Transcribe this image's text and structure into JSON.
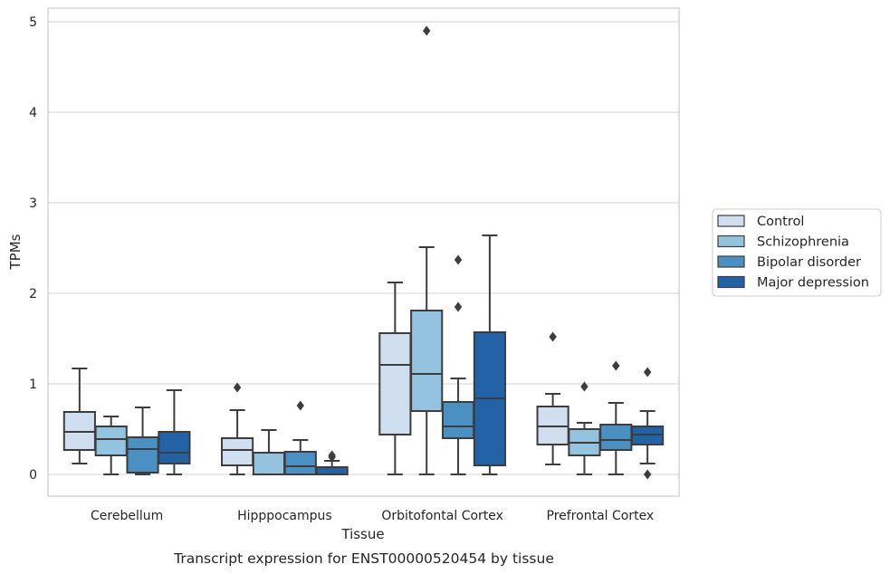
{
  "chart_data": {
    "type": "box",
    "xlabel": "Tissue",
    "ylabel": "TPMs",
    "caption": "Transcript expression for ENST00000520454 by tissue",
    "categories": [
      "Cerebellum",
      "Hipppocampus",
      "Orbitofontal Cortex",
      "Prefrontal Cortex"
    ],
    "ylim": [
      -0.23,
      5.15
    ],
    "yticks": [
      0,
      1,
      2,
      3,
      4,
      5
    ],
    "grid": "horizontal",
    "legend_placement": "right",
    "series": [
      {
        "name": "Control",
        "color": "#cfdff0",
        "boxes": [
          {
            "whislo": 0.12,
            "q1": 0.27,
            "med": 0.47,
            "q3": 0.69,
            "whishi": 1.17,
            "fliers": []
          },
          {
            "whislo": 0.0,
            "q1": 0.1,
            "med": 0.27,
            "q3": 0.4,
            "whishi": 0.71,
            "fliers": [
              0.96
            ]
          },
          {
            "whislo": 0.0,
            "q1": 0.44,
            "med": 1.21,
            "q3": 1.56,
            "whishi": 2.12,
            "fliers": []
          },
          {
            "whislo": 0.11,
            "q1": 0.33,
            "med": 0.53,
            "q3": 0.75,
            "whishi": 0.89,
            "fliers": [
              1.52
            ]
          }
        ]
      },
      {
        "name": "Schizophrenia",
        "color": "#93c3df",
        "boxes": [
          {
            "whislo": 0.0,
            "q1": 0.21,
            "med": 0.39,
            "q3": 0.53,
            "whishi": 0.64,
            "fliers": []
          },
          {
            "whislo": 0.0,
            "q1": 0.0,
            "med": 0.0,
            "q3": 0.24,
            "whishi": 0.49,
            "fliers": []
          },
          {
            "whislo": 0.0,
            "q1": 0.7,
            "med": 1.11,
            "q3": 1.81,
            "whishi": 2.51,
            "fliers": [
              4.9
            ]
          },
          {
            "whislo": 0.0,
            "q1": 0.21,
            "med": 0.35,
            "q3": 0.5,
            "whishi": 0.57,
            "fliers": [
              0.97
            ]
          }
        ]
      },
      {
        "name": "Bipolar disorder",
        "color": "#4a90c3",
        "boxes": [
          {
            "whislo": 0.0,
            "q1": 0.02,
            "med": 0.28,
            "q3": 0.41,
            "whishi": 0.74,
            "fliers": []
          },
          {
            "whislo": 0.0,
            "q1": 0.0,
            "med": 0.09,
            "q3": 0.25,
            "whishi": 0.38,
            "fliers": [
              0.76
            ]
          },
          {
            "whislo": 0.0,
            "q1": 0.4,
            "med": 0.53,
            "q3": 0.8,
            "whishi": 1.06,
            "fliers": [
              1.85,
              2.37
            ]
          },
          {
            "whislo": 0.0,
            "q1": 0.27,
            "med": 0.38,
            "q3": 0.55,
            "whishi": 0.79,
            "fliers": [
              1.2
            ]
          }
        ]
      },
      {
        "name": "Major depression",
        "color": "#2262a7",
        "boxes": [
          {
            "whislo": 0.0,
            "q1": 0.12,
            "med": 0.24,
            "q3": 0.47,
            "whishi": 0.93,
            "fliers": []
          },
          {
            "whislo": 0.0,
            "q1": 0.0,
            "med": 0.0,
            "q3": 0.08,
            "whishi": 0.15,
            "fliers": [
              0.19,
              0.21
            ]
          },
          {
            "whislo": 0.0,
            "q1": 0.1,
            "med": 0.84,
            "q3": 1.57,
            "whishi": 2.64,
            "fliers": []
          },
          {
            "whislo": 0.12,
            "q1": 0.33,
            "med": 0.44,
            "q3": 0.53,
            "whishi": 0.7,
            "fliers": [
              0.0,
              1.13
            ]
          }
        ]
      }
    ]
  }
}
